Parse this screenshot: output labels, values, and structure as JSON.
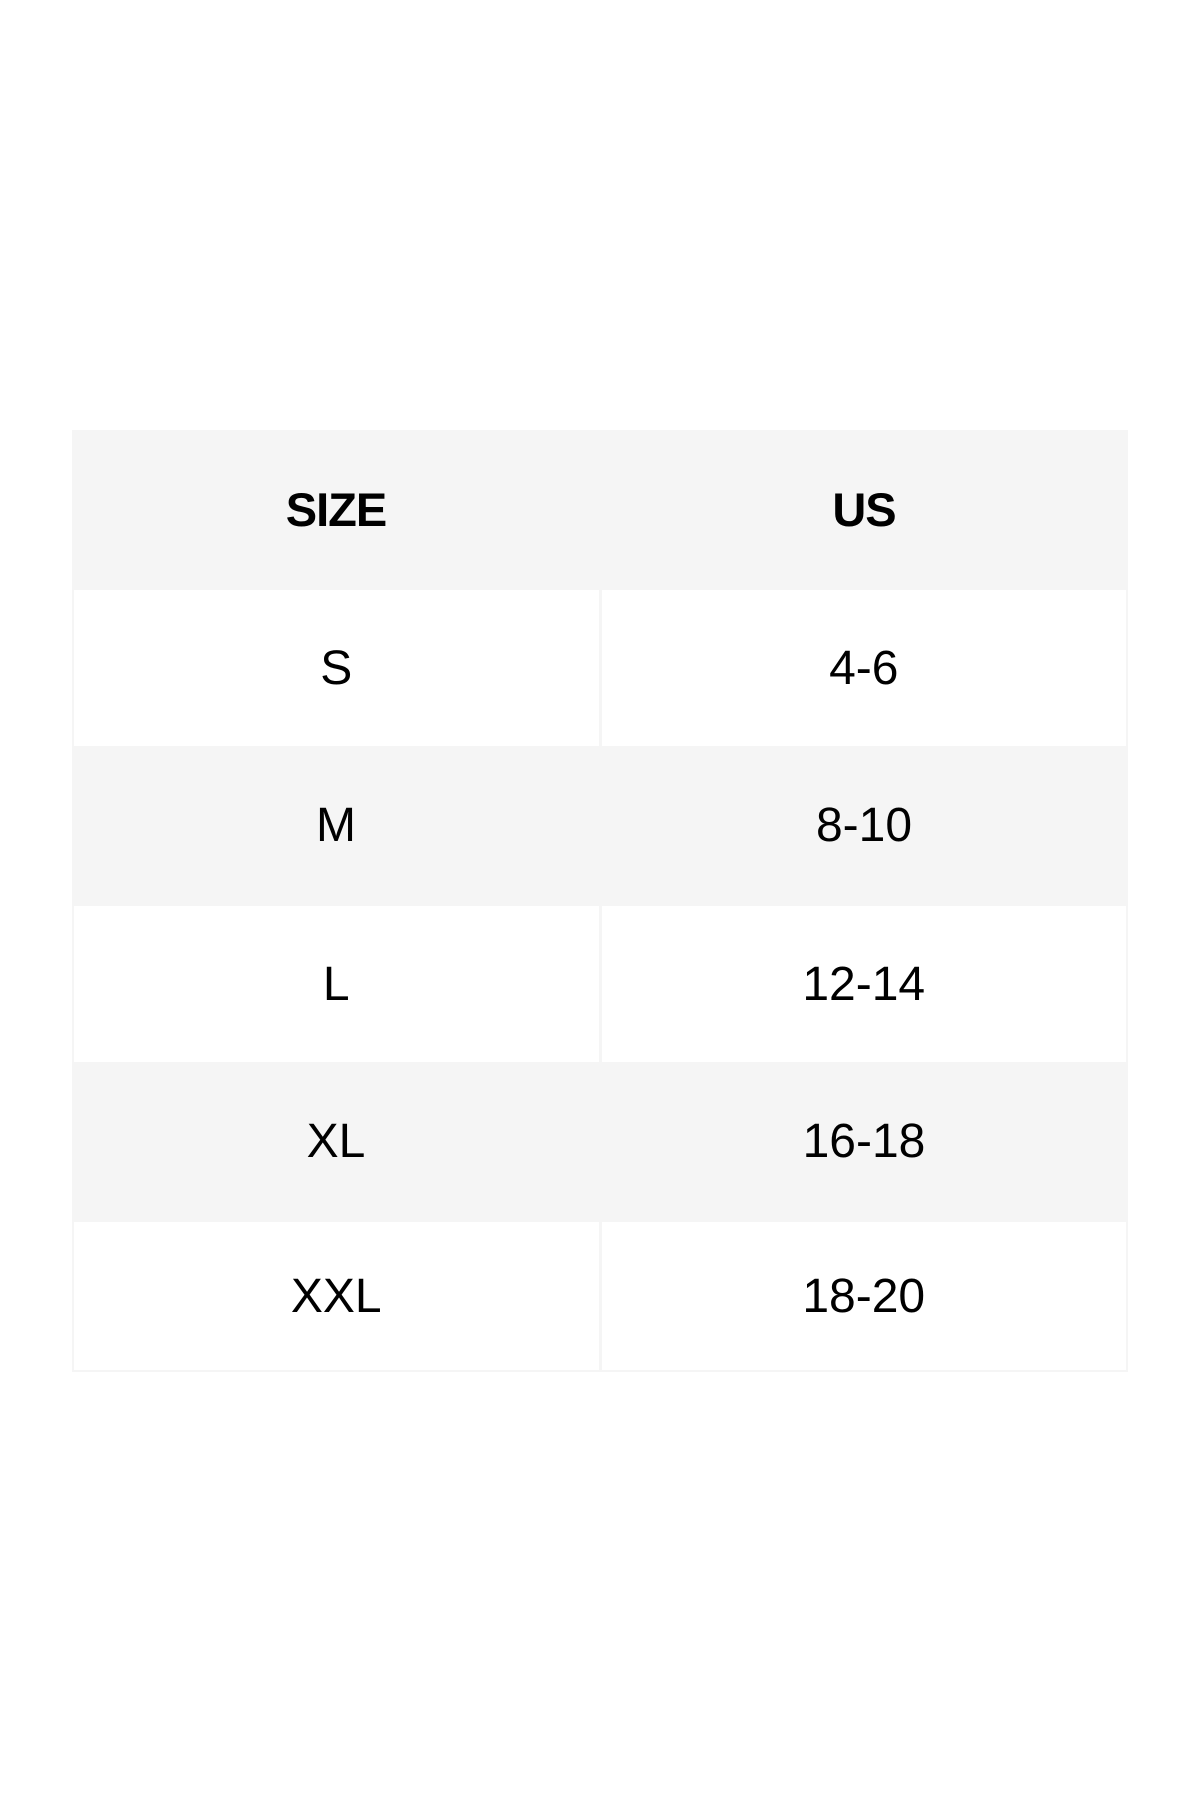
{
  "table": {
    "headers": [
      "SIZE",
      "US"
    ],
    "rows": [
      [
        "S",
        "4-6"
      ],
      [
        "M",
        "8-10"
      ],
      [
        "L",
        "12-14"
      ],
      [
        "XL",
        "16-18"
      ],
      [
        "XXL",
        "18-20"
      ]
    ]
  },
  "colors": {
    "header_bg": "#f5f5f5",
    "alt_row_bg": "#f5f5f5",
    "row_bg": "#ffffff"
  }
}
